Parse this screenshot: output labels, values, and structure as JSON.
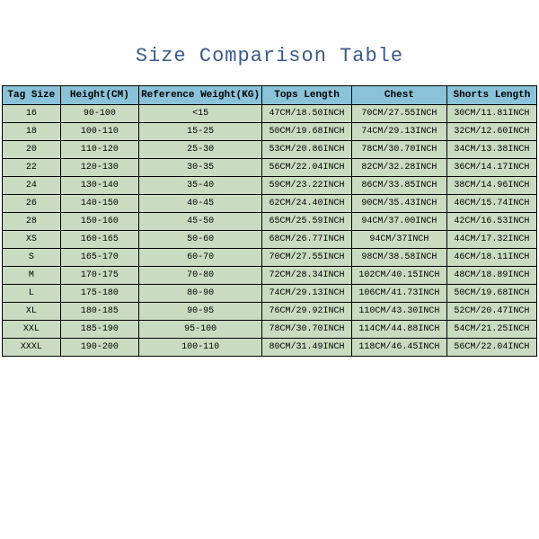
{
  "title": "Size Comparison Table",
  "colors": {
    "header_bg": "#89c2d9",
    "row_bg": "#c9dcc1",
    "border": "#000000",
    "title_color": "#3a5a8a"
  },
  "table": {
    "columns": [
      {
        "key": "tag",
        "label": "Tag Size",
        "width_pct": 11
      },
      {
        "key": "height",
        "label": "Height(CM)",
        "width_pct": 15
      },
      {
        "key": "weight",
        "label": "Reference Weight(KG)",
        "width_pct": 22
      },
      {
        "key": "tops",
        "label": "Tops Length",
        "width_pct": 17
      },
      {
        "key": "chest",
        "label": "Chest",
        "width_pct": 18
      },
      {
        "key": "shorts",
        "label": "Shorts Length",
        "width_pct": 17
      }
    ],
    "rows": [
      {
        "tag": "16",
        "height": "90-100",
        "weight": "<15",
        "tops": "47CM/18.50INCH",
        "chest": "70CM/27.55INCH",
        "shorts": "30CM/11.81INCH"
      },
      {
        "tag": "18",
        "height": "100-110",
        "weight": "15-25",
        "tops": "50CM/19.68INCH",
        "chest": "74CM/29.13INCH",
        "shorts": "32CM/12.60INCH"
      },
      {
        "tag": "20",
        "height": "110-120",
        "weight": "25-30",
        "tops": "53CM/20.86INCH",
        "chest": "78CM/30.70INCH",
        "shorts": "34CM/13.38INCH"
      },
      {
        "tag": "22",
        "height": "120-130",
        "weight": "30-35",
        "tops": "56CM/22.04INCH",
        "chest": "82CM/32.28INCH",
        "shorts": "36CM/14.17INCH"
      },
      {
        "tag": "24",
        "height": "130-140",
        "weight": "35-40",
        "tops": "59CM/23.22INCH",
        "chest": "86CM/33.85INCH",
        "shorts": "38CM/14.96INCH"
      },
      {
        "tag": "26",
        "height": "140-150",
        "weight": "40-45",
        "tops": "62CM/24.40INCH",
        "chest": "90CM/35.43INCH",
        "shorts": "40CM/15.74INCH"
      },
      {
        "tag": "28",
        "height": "150-160",
        "weight": "45-50",
        "tops": "65CM/25.59INCH",
        "chest": "94CM/37.00INCH",
        "shorts": "42CM/16.53INCH"
      },
      {
        "tag": "XS",
        "height": "160-165",
        "weight": "50-60",
        "tops": "68CM/26.77INCH",
        "chest": "94CM/37INCH",
        "shorts": "44CM/17.32INCH"
      },
      {
        "tag": "S",
        "height": "165-170",
        "weight": "60-70",
        "tops": "70CM/27.55INCH",
        "chest": "98CM/38.58INCH",
        "shorts": "46CM/18.11INCH"
      },
      {
        "tag": "M",
        "height": "170-175",
        "weight": "70-80",
        "tops": "72CM/28.34INCH",
        "chest": "102CM/40.15INCH",
        "shorts": "48CM/18.89INCH"
      },
      {
        "tag": "L",
        "height": "175-180",
        "weight": "80-90",
        "tops": "74CM/29.13INCH",
        "chest": "106CM/41.73INCH",
        "shorts": "50CM/19.68INCH"
      },
      {
        "tag": "XL",
        "height": "180-185",
        "weight": "90-95",
        "tops": "76CM/29.92INCH",
        "chest": "110CM/43.30INCH",
        "shorts": "52CM/20.47INCH"
      },
      {
        "tag": "XXL",
        "height": "185-190",
        "weight": "95-100",
        "tops": "78CM/30.70INCH",
        "chest": "114CM/44.88INCH",
        "shorts": "54CM/21.25INCH"
      },
      {
        "tag": "XXXL",
        "height": "190-200",
        "weight": "100-110",
        "tops": "80CM/31.49INCH",
        "chest": "118CM/46.45INCH",
        "shorts": "56CM/22.04INCH"
      }
    ]
  }
}
